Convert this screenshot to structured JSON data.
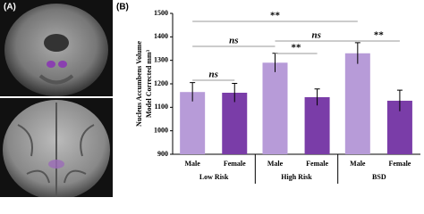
{
  "panel_a_label": "(A)",
  "chart_data": {
    "type": "bar",
    "panel_label": "(B)",
    "y_label_lines": [
      "Nucleus Accumbens Volume",
      "Model Corrected mm³"
    ],
    "groups": [
      "Low Risk",
      "High Risk",
      "BSD"
    ],
    "series": [
      {
        "name": "Male",
        "color": "#b79bd8",
        "values": [
          1165,
          1290,
          1330
        ],
        "errors": [
          40,
          40,
          45
        ]
      },
      {
        "name": "Female",
        "color": "#7a3da8",
        "values": [
          1162,
          1143,
          1128
        ],
        "errors": [
          40,
          35,
          45
        ]
      }
    ],
    "ylim": [
      900,
      1500
    ],
    "yticks": [
      900,
      1000,
      1100,
      1200,
      1300,
      1400,
      1500
    ],
    "annotations": [
      "**",
      "ns",
      "ns",
      "**",
      "ns",
      "**"
    ]
  }
}
